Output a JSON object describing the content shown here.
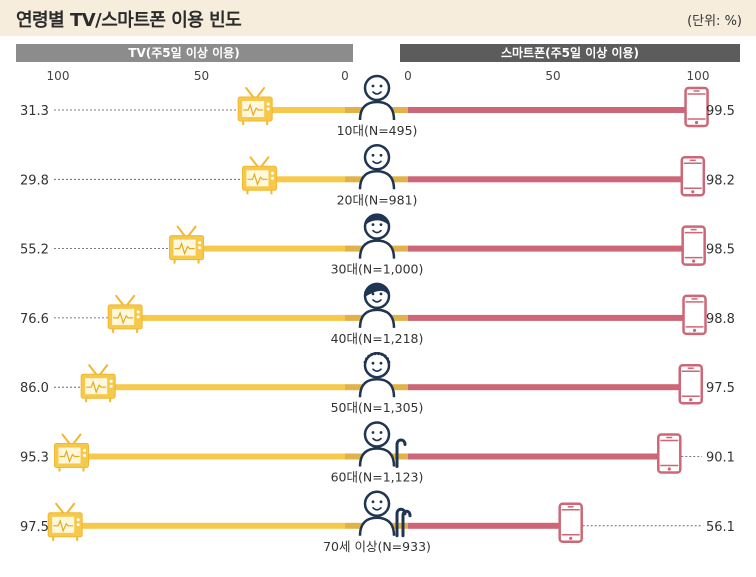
{
  "header": {
    "title": "연령별 TV/스마트폰 이용 빈도",
    "unit": "(단위: %)"
  },
  "chart_data": {
    "type": "bar",
    "layout": "diverging-butterfly",
    "title": "연령별 TV/스마트폰 이용 빈도",
    "unit": "(단위: %)",
    "categories": [
      "10대(N=495)",
      "20대(N=981)",
      "30대(N=1,000)",
      "40대(N=1,218)",
      "50대(N=1,305)",
      "60대(N=1,123)",
      "70세 이상(N=933)"
    ],
    "series": [
      {
        "name": "TV(주5일 이상 이용)",
        "side": "left",
        "color": "#f7c94b",
        "values": [
          31.3,
          29.8,
          55.2,
          76.6,
          86.0,
          95.3,
          97.5
        ],
        "labels": [
          "31.3",
          "29.8",
          "55.2",
          "76.6",
          "86.0",
          "95.3",
          "97.5"
        ]
      },
      {
        "name": "스마트폰(주5일 이상 이용)",
        "side": "right",
        "color": "#cd6676",
        "values": [
          99.5,
          98.2,
          98.5,
          98.8,
          97.5,
          90.1,
          56.1
        ],
        "labels": [
          "99.5",
          "98.2",
          "98.5",
          "98.8",
          "97.5",
          "90.1",
          "56.1"
        ]
      }
    ],
    "left_ticks": [
      "100",
      "50",
      "0"
    ],
    "right_ticks": [
      "0",
      "50",
      "100"
    ],
    "xlim": [
      0,
      100
    ],
    "colors": {
      "header_bar": "#8c8c8c",
      "header_right": "#5c5c5c",
      "title_band": "#f7eddd",
      "person": "#1f3552"
    },
    "icons": [
      "tv-icon",
      "smartphone-icon",
      "person-icon"
    ]
  }
}
